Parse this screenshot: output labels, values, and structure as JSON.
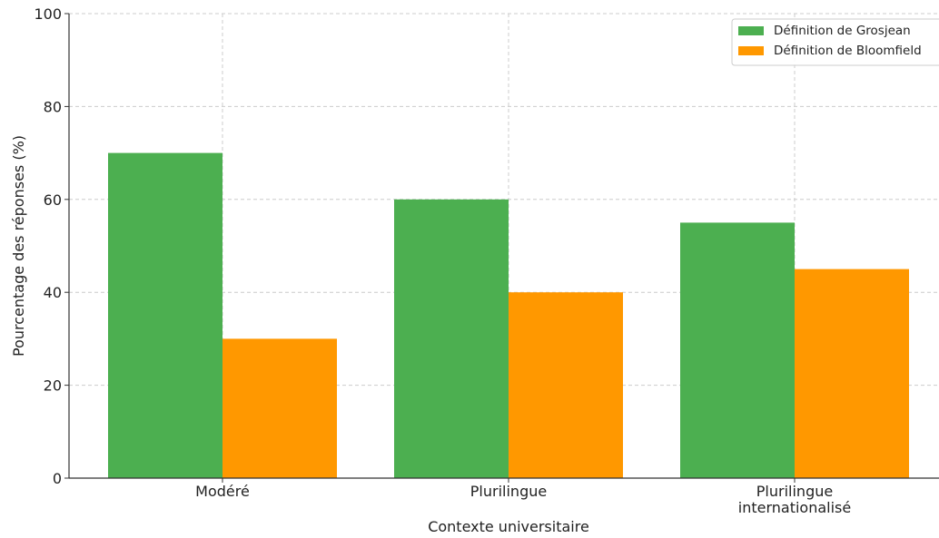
{
  "chart_data": {
    "type": "bar",
    "title": "",
    "xlabel": "Contexte universitaire",
    "ylabel": "Pourcentage des réponses (%)",
    "ylim": [
      0,
      100
    ],
    "yticks": [
      "0",
      "20",
      "40",
      "60",
      "80",
      "100"
    ],
    "categories": [
      [
        "Modéré"
      ],
      [
        "Plurilingue"
      ],
      [
        "Plurilingue",
        "internationalisé"
      ]
    ],
    "series": [
      {
        "name": "Définition de Grosjean",
        "values": [
          70,
          60,
          55
        ],
        "color": "#4caf50"
      },
      {
        "name": "Définition de Bloomfield",
        "values": [
          30,
          40,
          45
        ],
        "color": "#ff9800"
      }
    ],
    "grid": true,
    "legend_position": "top-right"
  }
}
